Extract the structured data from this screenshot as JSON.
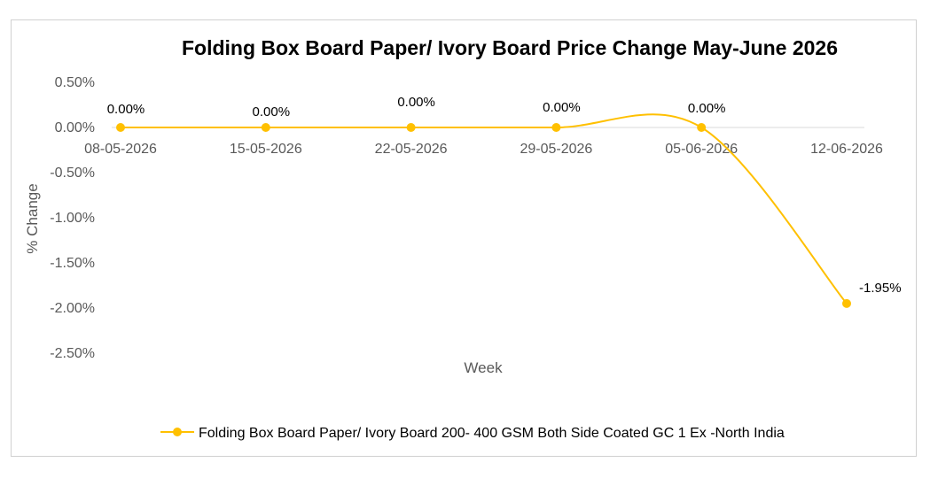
{
  "chart_data": {
    "type": "line",
    "title": "Folding Box Board Paper/ Ivory Board Price Change May-June 2026",
    "xlabel": "Week",
    "ylabel": "% Change",
    "categories": [
      "08-05-2026",
      "15-05-2026",
      "22-05-2026",
      "29-05-2026",
      "05-06-2026",
      "12-06-2026"
    ],
    "series": [
      {
        "name": "Folding Box Board Paper/ Ivory Board 200- 400 GSM Both Side Coated GC 1 Ex -North India",
        "values": [
          0.0,
          0.0,
          0.0,
          0.0,
          0.0,
          -1.95
        ],
        "labels": [
          "0.00%",
          "0.00%",
          "0.00%",
          "0.00%",
          "0.00%",
          "-1.95%"
        ],
        "color": "#FFC000"
      }
    ],
    "ylim": [
      -2.5,
      0.5
    ],
    "yticks": [
      "0.50%",
      "0.00%",
      "-0.50%",
      "-1.00%",
      "-1.50%",
      "-2.00%",
      "-2.50%"
    ],
    "ytick_values": [
      0.5,
      0.0,
      -0.5,
      -1.0,
      -1.5,
      -2.0,
      -2.5
    ],
    "smooth": true,
    "grid": false,
    "legend_position": "bottom"
  }
}
